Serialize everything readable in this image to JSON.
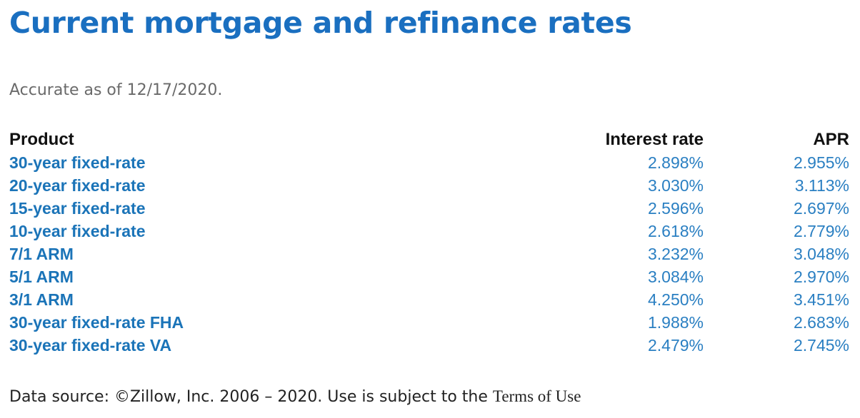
{
  "title": "Current mortgage and refinance rates",
  "as_of": "Accurate as of 12/17/2020.",
  "table": {
    "headers": {
      "product": "Product",
      "interest_rate": "Interest rate",
      "apr": "APR"
    },
    "rows": [
      {
        "product": "30-year fixed-rate",
        "interest_rate": "2.898%",
        "apr": "2.955%"
      },
      {
        "product": "20-year fixed-rate",
        "interest_rate": "3.030%",
        "apr": "3.113%"
      },
      {
        "product": "15-year fixed-rate",
        "interest_rate": "2.596%",
        "apr": "2.697%"
      },
      {
        "product": "10-year fixed-rate",
        "interest_rate": "2.618%",
        "apr": "2.779%"
      },
      {
        "product": "7/1 ARM",
        "interest_rate": "3.232%",
        "apr": "3.048%"
      },
      {
        "product": "5/1 ARM",
        "interest_rate": "3.084%",
        "apr": "2.970%"
      },
      {
        "product": "3/1 ARM",
        "interest_rate": "4.250%",
        "apr": "3.451%"
      },
      {
        "product": "30-year fixed-rate FHA",
        "interest_rate": "1.988%",
        "apr": "2.683%"
      },
      {
        "product": "30-year fixed-rate VA",
        "interest_rate": "2.479%",
        "apr": "2.745%"
      }
    ]
  },
  "footer": {
    "text": "Data source: ©Zillow, Inc. 2006 – 2020. Use is subject to the",
    "terms_link": "Terms of Use"
  },
  "colors": {
    "title": "#1a6fc0",
    "product": "#1b74b8",
    "values": "#2a7fc2",
    "muted": "#6a6a6a"
  }
}
